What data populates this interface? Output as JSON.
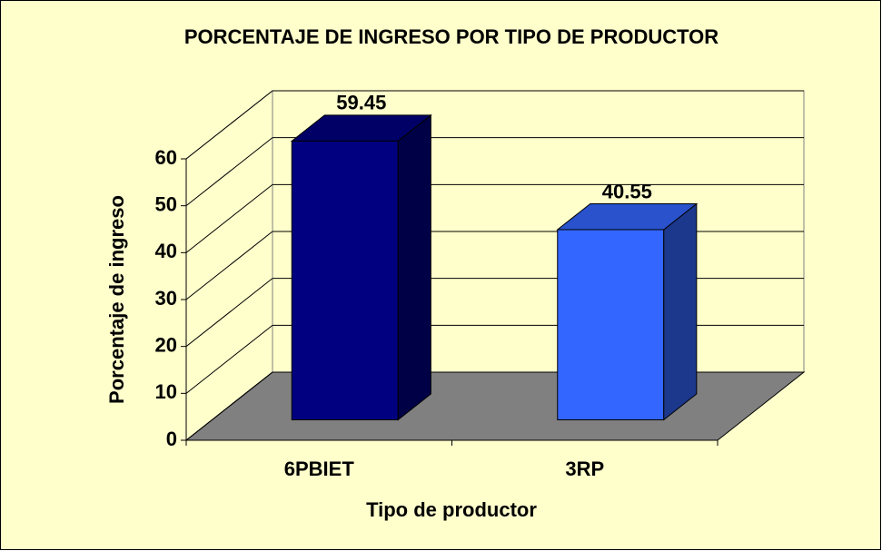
{
  "chart_data": {
    "type": "bar3d",
    "title": "PORCENTAJE DE INGRESO POR TIPO DE PRODUCTOR",
    "x_label": "Tipo de productor",
    "y_label": "Porcentaje de ingreso",
    "categories": [
      "6PBIET",
      "3RP"
    ],
    "values": [
      59.45,
      40.55
    ],
    "colors": [
      "#000080",
      "#3366ff"
    ],
    "ylim": [
      0,
      60
    ],
    "yticks": [
      0,
      10,
      20,
      30,
      40,
      50,
      60
    ],
    "grid": true
  }
}
